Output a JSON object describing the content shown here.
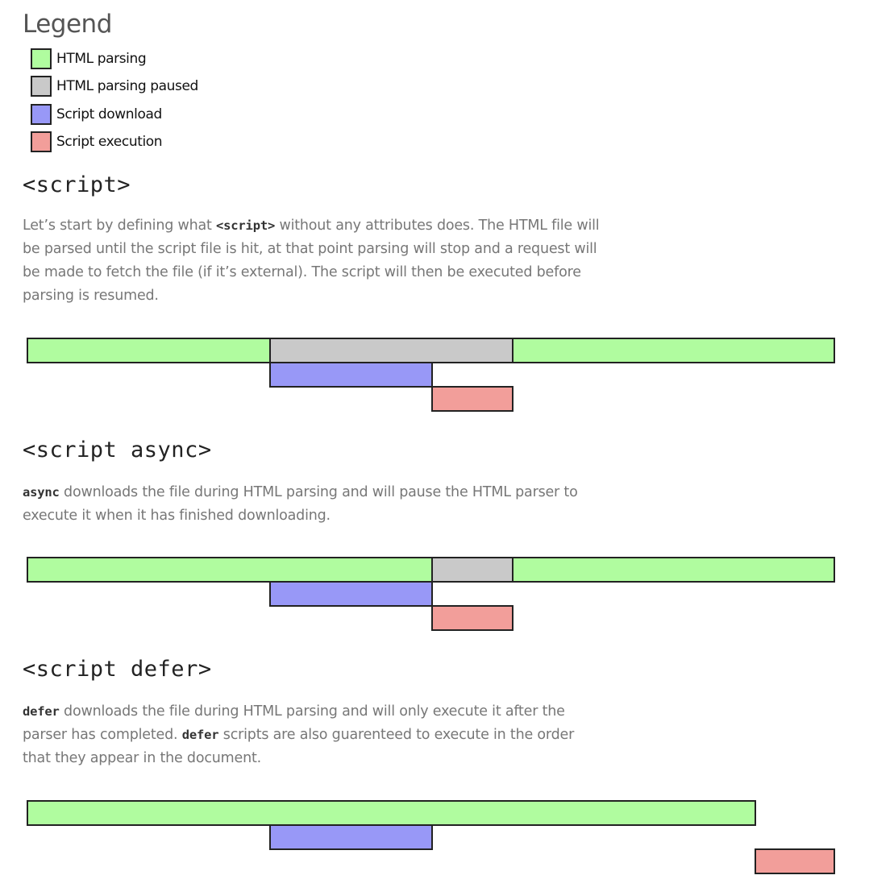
{
  "legend": {
    "title": "Legend",
    "items": [
      {
        "name": "html-parsing",
        "label": "HTML parsing",
        "color": "#b0fc9f"
      },
      {
        "name": "html-parsing-paused",
        "label": "HTML parsing paused",
        "color": "#c9c9c9"
      },
      {
        "name": "script-download",
        "label": "Script download",
        "color": "#9898f7"
      },
      {
        "name": "script-execution",
        "label": "Script execution",
        "color": "#f29e9a"
      }
    ]
  },
  "sections": [
    {
      "heading": "<script>",
      "paragraph": [
        {
          "t": "text",
          "v": "Let’s start by defining what "
        },
        {
          "t": "code",
          "v": "<script>"
        },
        {
          "t": "text",
          "v": " without any attributes does. The HTML file will be parsed until the script file is hit, at that point parsing will stop and a request will be made to fetch the file (if it’s external). The script will then be executed before parsing is resumed."
        }
      ]
    },
    {
      "heading": "<script async>",
      "paragraph": [
        {
          "t": "code",
          "v": "async"
        },
        {
          "t": "text",
          "v": " downloads the file during HTML parsing and will pause the HTML parser to execute it when it has finished downloading."
        }
      ]
    },
    {
      "heading": "<script defer>",
      "paragraph": [
        {
          "t": "code",
          "v": "defer"
        },
        {
          "t": "text",
          "v": " downloads the file during HTML parsing and will only execute it after the parser has completed. "
        },
        {
          "t": "code",
          "v": "defer"
        },
        {
          "t": "text",
          "v": " scripts are also guarenteed to execute in the order that they appear in the document."
        }
      ]
    }
  ]
}
